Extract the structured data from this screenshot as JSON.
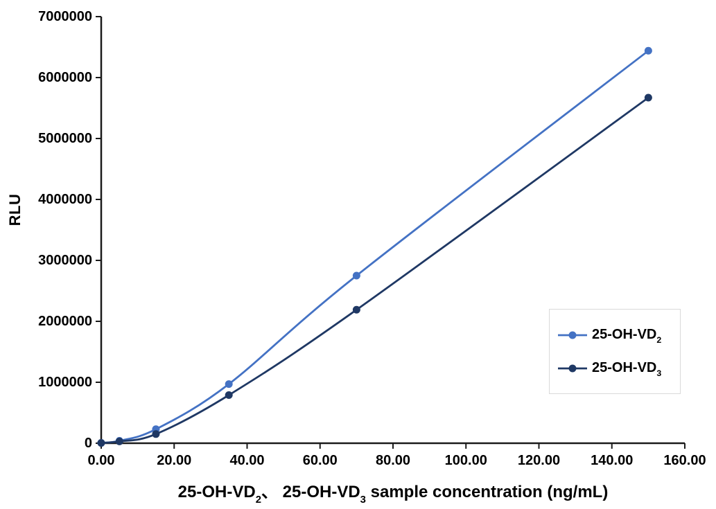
{
  "figure": {
    "background": "#ffffff",
    "text_color": "#000000",
    "axis_color": "#1a1a1a",
    "legend_border_color": "#D9D9D9"
  },
  "chart_data": {
    "type": "line",
    "title": "",
    "ylabel": "RLU",
    "xlabel_text": "25-OH-VD₂、 25-OH-VD₃ sample concentration (ng/mL)",
    "xlabel_rich": [
      {
        "text": "25-OH-VD"
      },
      {
        "text": "2",
        "sub": true
      },
      {
        "text": "、 25-OH-VD"
      },
      {
        "text": "3",
        "sub": true
      },
      {
        "text": " sample concentration (ng/mL)"
      }
    ],
    "x": [
      0,
      5,
      15,
      35,
      70,
      150
    ],
    "series": [
      {
        "name": "25-OH-VD₂",
        "name_rich": [
          {
            "text": "25-OH-VD"
          },
          {
            "text": "2",
            "sub": true
          }
        ],
        "color": "#4472C4",
        "values": [
          5000,
          40000,
          230000,
          970000,
          2750000,
          6440000
        ]
      },
      {
        "name": "25-OH-VD₃",
        "name_rich": [
          {
            "text": "25-OH-VD"
          },
          {
            "text": "3",
            "sub": true
          }
        ],
        "color": "#1F3864",
        "values": [
          4000,
          30000,
          150000,
          790000,
          2190000,
          5670000
        ]
      }
    ],
    "xlim": [
      0,
      160
    ],
    "ylim": [
      0,
      7000000
    ],
    "x_ticks": [
      {
        "value": 0,
        "label": "0.00"
      },
      {
        "value": 20,
        "label": "20.00"
      },
      {
        "value": 40,
        "label": "40.00"
      },
      {
        "value": 60,
        "label": "60.00"
      },
      {
        "value": 80,
        "label": "80.00"
      },
      {
        "value": 100,
        "label": "100.00"
      },
      {
        "value": 120,
        "label": "120.00"
      },
      {
        "value": 140,
        "label": "140.00"
      },
      {
        "value": 160,
        "label": "160.00"
      }
    ],
    "y_ticks": [
      {
        "value": 0,
        "label": "0"
      },
      {
        "value": 1000000,
        "label": "1000000"
      },
      {
        "value": 2000000,
        "label": "2000000"
      },
      {
        "value": 3000000,
        "label": "3000000"
      },
      {
        "value": 4000000,
        "label": "4000000"
      },
      {
        "value": 5000000,
        "label": "5000000"
      },
      {
        "value": 6000000,
        "label": "6000000"
      },
      {
        "value": 7000000,
        "label": "7000000"
      }
    ],
    "grid": false,
    "smooth": true,
    "marker": "circle",
    "legend_position": "right-middle"
  }
}
